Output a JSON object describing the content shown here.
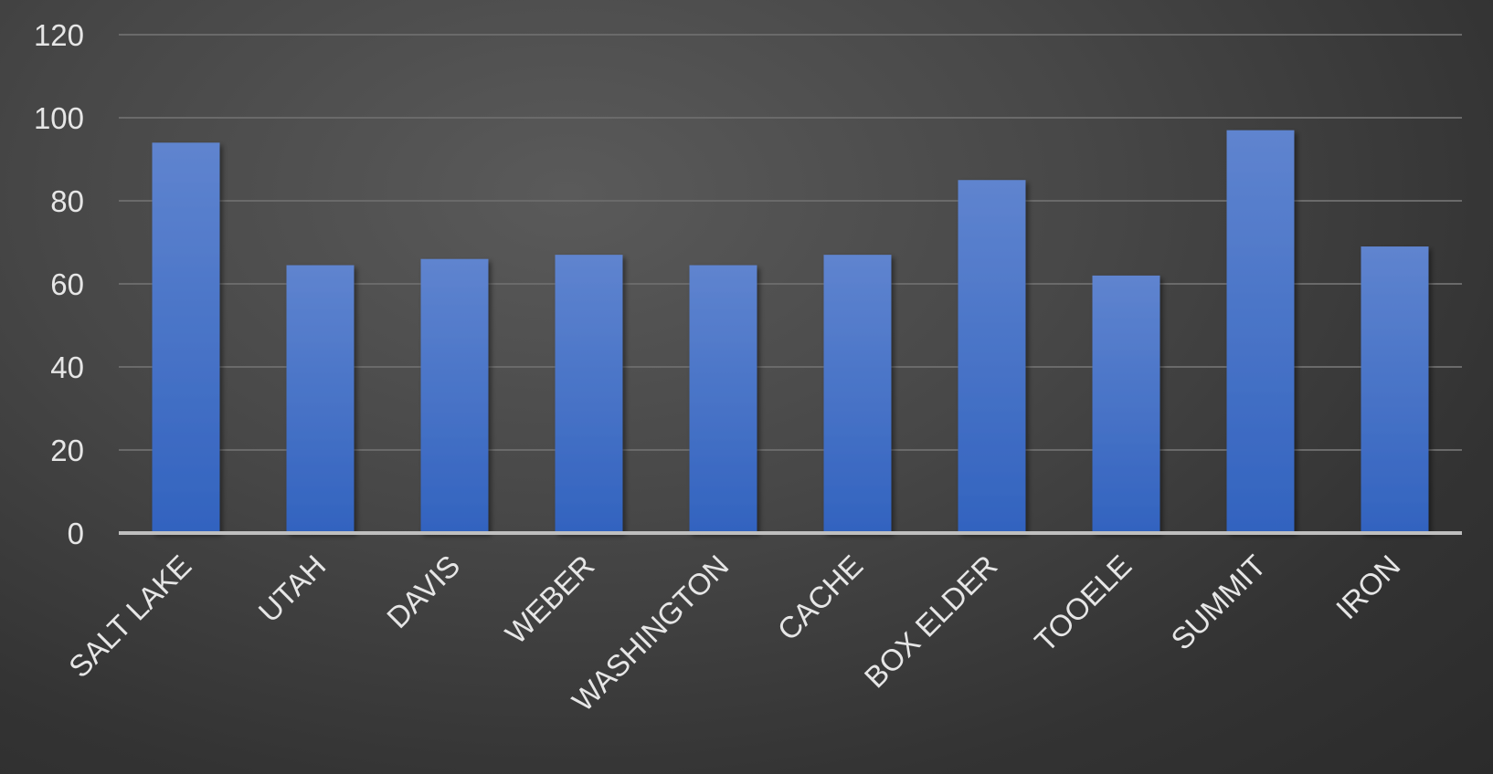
{
  "chart_data": {
    "type": "bar",
    "title": "",
    "xlabel": "",
    "ylabel": "",
    "categories": [
      "SALT LAKE",
      "UTAH",
      "DAVIS",
      "WEBER",
      "WASHINGTON",
      "CACHE",
      "BOX ELDER",
      "TOOELE",
      "SUMMIT",
      "IRON"
    ],
    "values": [
      94,
      64.5,
      66,
      67,
      64.5,
      67,
      85,
      62,
      97,
      69
    ],
    "ylim": [
      0,
      120
    ],
    "yticks": [
      0,
      20,
      40,
      60,
      80,
      100,
      120
    ],
    "grid": true,
    "legend": "none",
    "colors": {
      "bar_top": "#5f84cf",
      "bar_bottom": "#3263bf",
      "gridline": "#6a6a6a",
      "axis": "#bfbfbf",
      "text": "#e6e6e6"
    }
  }
}
